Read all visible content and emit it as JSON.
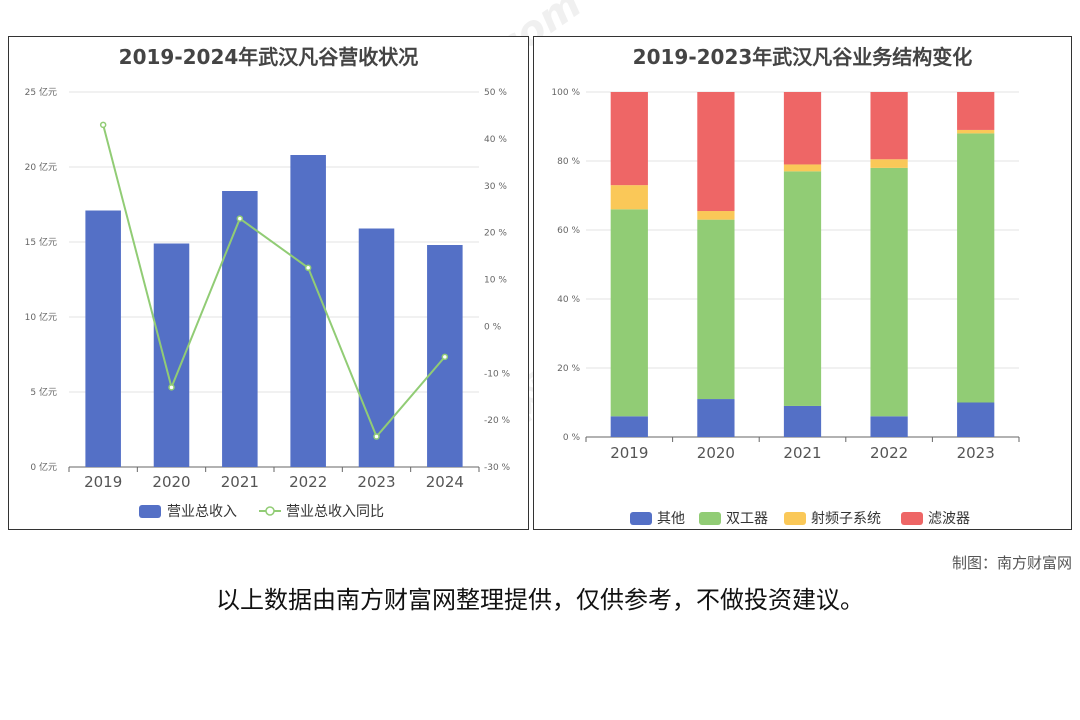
{
  "chart_data": [
    {
      "type": "bar",
      "title": "2019-2024年武汉凡谷营收状况",
      "categories": [
        "2019",
        "2020",
        "2021",
        "2022",
        "2023",
        "2024"
      ],
      "series": [
        {
          "name": "营业总收入",
          "type": "bar",
          "axis": "left",
          "values": [
            17.1,
            14.9,
            18.4,
            20.8,
            15.9,
            14.8
          ],
          "color": "#5470c6"
        },
        {
          "name": "营业总收入同比",
          "type": "line",
          "axis": "right",
          "values": [
            43.0,
            -13.0,
            23.0,
            12.5,
            -23.5,
            -6.5
          ],
          "color": "#91cc75"
        }
      ],
      "y_left": {
        "ticks": [
          0,
          5,
          10,
          15,
          20,
          25
        ],
        "tick_labels": [
          "0 亿元",
          "5 亿元",
          "10 亿元",
          "15 亿元",
          "20 亿元",
          "25 亿元"
        ],
        "range": [
          0,
          25
        ]
      },
      "y_right": {
        "ticks": [
          -30,
          -20,
          -10,
          0,
          10,
          20,
          30,
          40,
          50
        ],
        "tick_labels": [
          "-30 %",
          "-20 %",
          "-10 %",
          "0 %",
          "10 %",
          "20 %",
          "30 %",
          "40 %",
          "50 %"
        ],
        "range": [
          -30,
          50
        ]
      },
      "grid": true,
      "legend_position": "bottom"
    },
    {
      "type": "bar",
      "stacked": true,
      "percent": true,
      "title": "2019-2023年武汉凡谷业务结构变化",
      "categories": [
        "2019",
        "2020",
        "2021",
        "2022",
        "2023"
      ],
      "series": [
        {
          "name": "其他",
          "values": [
            6,
            11,
            9,
            6,
            10
          ],
          "color": "#5470c6"
        },
        {
          "name": "双工器",
          "values": [
            60,
            52,
            68,
            72,
            78
          ],
          "color": "#91cc75"
        },
        {
          "name": "射频子系统",
          "values": [
            7,
            2.5,
            2,
            2.5,
            1
          ],
          "color": "#fac858"
        },
        {
          "name": "滤波器",
          "values": [
            27,
            34.5,
            21,
            19.5,
            11
          ],
          "color": "#ee6666"
        }
      ],
      "y": {
        "ticks": [
          0,
          20,
          40,
          60,
          80,
          100
        ],
        "tick_labels": [
          "0 %",
          "20 %",
          "40 %",
          "60 %",
          "80 %",
          "100 %"
        ],
        "range": [
          0,
          100
        ]
      },
      "grid": true,
      "legend_position": "bottom"
    }
  ],
  "credit": "制图：南方财富网",
  "disclaimer": "以上数据由南方财富网整理提供，仅供参考，不做投资建议。",
  "watermark_text": [
    "南方财富网",
    "southmoney.com"
  ]
}
